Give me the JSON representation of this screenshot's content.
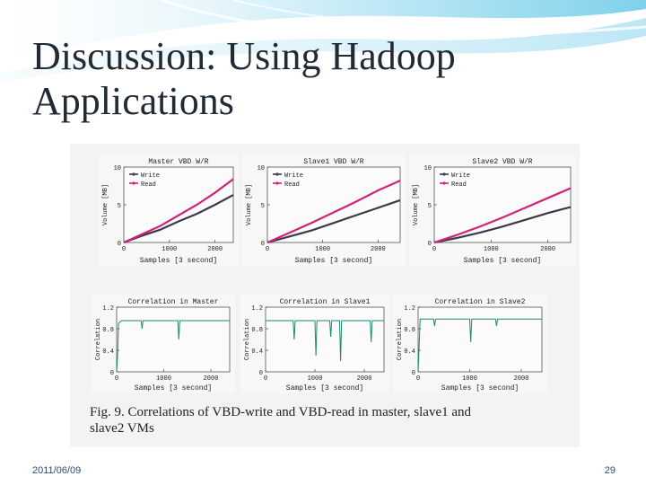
{
  "slide": {
    "title_line1": "Discussion: Using Hadoop",
    "title_line2": "Applications",
    "date": "2011/06/09",
    "page_number": "29"
  },
  "figure": {
    "caption_line1": "Fig. 9.   Correlations  of  VBD-write  and  VBD-read  in  master,  slave1  and",
    "caption_line2": "slave2 VMs"
  },
  "colors": {
    "write": "#3a3a4a",
    "read": "#d0237a",
    "correlation": "#1f8a6a",
    "title": "#222a36"
  },
  "chart_data": [
    {
      "type": "line",
      "title": "Master VBD W/R",
      "xlabel": "Samples [3 second]",
      "ylabel": "Volume [MB]",
      "xlim": [
        0,
        2400
      ],
      "ylim": [
        0,
        10
      ],
      "xticks": [
        "0",
        "1000",
        "2000"
      ],
      "yticks": [
        "0",
        "5",
        "10"
      ],
      "legend": "top-left",
      "x": [
        0,
        400,
        800,
        1200,
        1600,
        2000,
        2400
      ],
      "series": [
        {
          "name": "Write",
          "values": [
            0,
            0.9,
            1.7,
            2.8,
            3.8,
            5.0,
            6.3
          ]
        },
        {
          "name": "Read",
          "values": [
            0,
            1.1,
            2.2,
            3.6,
            5.0,
            6.6,
            8.4
          ]
        }
      ]
    },
    {
      "type": "line",
      "title": "Slave1 VBD W/R",
      "xlabel": "Samples [3 second]",
      "ylabel": "Volume [MB]",
      "xlim": [
        0,
        2400
      ],
      "ylim": [
        0,
        10
      ],
      "xticks": [
        "0",
        "1000",
        "2000"
      ],
      "yticks": [
        "0",
        "5",
        "10"
      ],
      "legend": "top-left",
      "x": [
        0,
        400,
        800,
        1200,
        1600,
        2000,
        2400
      ],
      "series": [
        {
          "name": "Write",
          "values": [
            0,
            0.8,
            1.6,
            2.6,
            3.6,
            4.6,
            5.6
          ]
        },
        {
          "name": "Read",
          "values": [
            0,
            1.3,
            2.6,
            4.0,
            5.4,
            6.9,
            8.2
          ]
        }
      ]
    },
    {
      "type": "line",
      "title": "Slave2 VBD W/R",
      "xlabel": "Samples [3 second]",
      "ylabel": "Volume [MB]",
      "xlim": [
        0,
        2400
      ],
      "ylim": [
        0,
        10
      ],
      "xticks": [
        "0",
        "1000",
        "2000"
      ],
      "yticks": [
        "0",
        "5",
        "10"
      ],
      "legend": "top-left",
      "x": [
        0,
        400,
        800,
        1200,
        1600,
        2000,
        2400
      ],
      "series": [
        {
          "name": "Write",
          "values": [
            0,
            0.6,
            1.3,
            2.1,
            3.0,
            3.9,
            4.7
          ]
        },
        {
          "name": "Read",
          "values": [
            0,
            1.0,
            2.1,
            3.3,
            4.6,
            5.9,
            7.2
          ]
        }
      ]
    },
    {
      "type": "line",
      "title": "Correlation in Master",
      "xlabel": "Samples [3 second]",
      "ylabel": "Correlation",
      "xlim": [
        0,
        2400
      ],
      "ylim": [
        0,
        1.2
      ],
      "xticks": [
        "0",
        "1000",
        "2000"
      ],
      "yticks": [
        "0",
        "0.4",
        "0.8",
        "1.2"
      ],
      "series": [
        {
          "name": "",
          "baseline": 0.95,
          "points": [
            [
              0,
              0
            ],
            [
              20,
              0.3
            ],
            [
              40,
              0.9
            ],
            [
              100,
              0.95
            ],
            [
              520,
              0.95
            ],
            [
              540,
              0.8
            ],
            [
              560,
              0.95
            ],
            [
              1300,
              0.95
            ],
            [
              1320,
              0.6
            ],
            [
              1340,
              0.95
            ],
            [
              2400,
              0.95
            ]
          ]
        }
      ]
    },
    {
      "type": "line",
      "title": "Correlation in Slave1",
      "xlabel": "Samples [3 second]",
      "ylabel": "Correlation",
      "xlim": [
        0,
        2400
      ],
      "ylim": [
        0,
        1.2
      ],
      "xticks": [
        "0",
        "1000",
        "2000"
      ],
      "yticks": [
        "0",
        "0.4",
        "0.8",
        "1.2"
      ],
      "series": [
        {
          "name": "",
          "baseline": 0.95,
          "points": [
            [
              0,
              0.95
            ],
            [
              560,
              0.95
            ],
            [
              580,
              0.6
            ],
            [
              600,
              0.95
            ],
            [
              1000,
              0.95
            ],
            [
              1020,
              0.3
            ],
            [
              1040,
              0.95
            ],
            [
              1300,
              0.95
            ],
            [
              1320,
              0.65
            ],
            [
              1340,
              0.95
            ],
            [
              1500,
              0.95
            ],
            [
              1520,
              0.2
            ],
            [
              1540,
              0.95
            ],
            [
              2120,
              0.95
            ],
            [
              2140,
              0.55
            ],
            [
              2160,
              0.95
            ],
            [
              2400,
              0.95
            ]
          ]
        }
      ]
    },
    {
      "type": "line",
      "title": "Correlation in Slave2",
      "xlabel": "Samples [3 second]",
      "ylabel": "Correlation",
      "xlim": [
        0,
        2400
      ],
      "ylim": [
        0,
        1.2
      ],
      "xticks": [
        "0",
        "1000",
        "2000"
      ],
      "yticks": [
        "0",
        "0.4",
        "0.8",
        "1.2"
      ],
      "series": [
        {
          "name": "",
          "baseline": 0.98,
          "points": [
            [
              0,
              0
            ],
            [
              20,
              0.5
            ],
            [
              40,
              0.98
            ],
            [
              300,
              0.98
            ],
            [
              320,
              0.85
            ],
            [
              340,
              0.98
            ],
            [
              1000,
              0.98
            ],
            [
              1020,
              0.55
            ],
            [
              1040,
              0.98
            ],
            [
              1500,
              0.98
            ],
            [
              1520,
              0.85
            ],
            [
              1540,
              0.98
            ],
            [
              2400,
              0.98
            ]
          ]
        }
      ]
    }
  ]
}
